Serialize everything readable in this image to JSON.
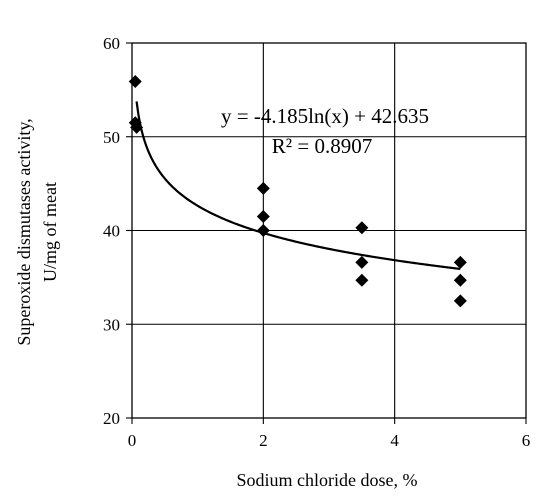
{
  "chart_data": {
    "type": "scatter",
    "xlabel": "Sodium chloride dose, %",
    "ylabel_lines": [
      "Superoxide  dismutases  activity,",
      "U/mg of meat"
    ],
    "xlim": [
      0,
      6
    ],
    "ylim": [
      20,
      60
    ],
    "x_ticks": [
      0,
      2,
      4,
      6
    ],
    "y_ticks": [
      20,
      30,
      40,
      50,
      60
    ],
    "grid": true,
    "marker": "diamond",
    "marker_color": "#000000",
    "points": [
      {
        "x": 0.05,
        "y": 55.9
      },
      {
        "x": 0.05,
        "y": 51.5
      },
      {
        "x": 0.07,
        "y": 51.0
      },
      {
        "x": 2.0,
        "y": 44.5
      },
      {
        "x": 2.0,
        "y": 41.5
      },
      {
        "x": 2.0,
        "y": 40.0
      },
      {
        "x": 3.5,
        "y": 40.3
      },
      {
        "x": 3.5,
        "y": 36.6
      },
      {
        "x": 3.5,
        "y": 34.7
      },
      {
        "x": 5.0,
        "y": 36.6
      },
      {
        "x": 5.0,
        "y": 34.7
      },
      {
        "x": 5.0,
        "y": 32.5
      }
    ],
    "trendline": {
      "type": "logarithmic",
      "a": -4.185,
      "b": 42.635,
      "x_range": [
        0.07,
        5.0
      ],
      "equation_text": "y = -4.185ln(x) + 42.635",
      "r2_text": "R² = 0.8907"
    }
  }
}
